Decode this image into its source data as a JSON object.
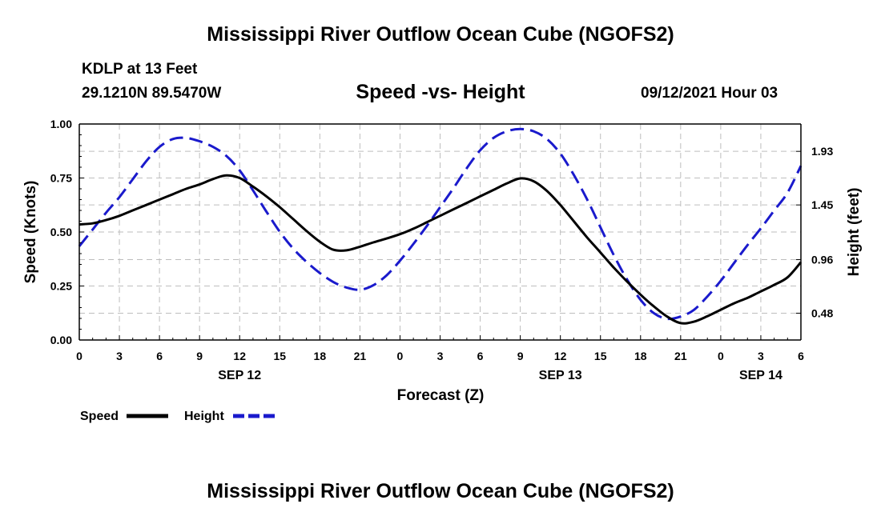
{
  "header": {
    "title": "Mississippi River Outflow Ocean Cube (NGOFS2)",
    "station": "KDLP at 13 Feet",
    "coords": "29.1210N  89.5470W",
    "subtitle": "Speed -vs- Height",
    "datetime": "09/12/2021 Hour 03"
  },
  "footer": {
    "title": "Mississippi River Outflow Ocean Cube (NGOFS2)"
  },
  "chart_data": {
    "type": "line",
    "title": "Speed -vs- Height",
    "xlabel": "Forecast (Z)",
    "ylabel": "Speed (Knots)",
    "y2label": "Height (feet)",
    "x_range_hours": [
      0,
      54
    ],
    "x_ticks": [
      {
        "h": 0,
        "label": "0"
      },
      {
        "h": 3,
        "label": "3"
      },
      {
        "h": 6,
        "label": "6"
      },
      {
        "h": 9,
        "label": "9"
      },
      {
        "h": 12,
        "label": "12"
      },
      {
        "h": 15,
        "label": "15"
      },
      {
        "h": 18,
        "label": "18"
      },
      {
        "h": 21,
        "label": "21"
      },
      {
        "h": 24,
        "label": "0"
      },
      {
        "h": 27,
        "label": "3"
      },
      {
        "h": 30,
        "label": "6"
      },
      {
        "h": 33,
        "label": "9"
      },
      {
        "h": 36,
        "label": "12"
      },
      {
        "h": 39,
        "label": "15"
      },
      {
        "h": 42,
        "label": "18"
      },
      {
        "h": 45,
        "label": "21"
      },
      {
        "h": 48,
        "label": "0"
      },
      {
        "h": 51,
        "label": "3"
      },
      {
        "h": 54,
        "label": "6"
      }
    ],
    "date_labels": [
      {
        "h": 12,
        "label": "SEP 12"
      },
      {
        "h": 36,
        "label": "SEP 13"
      },
      {
        "h": 51,
        "label": "SEP 14"
      }
    ],
    "ylim": [
      0,
      1
    ],
    "y_ticks": [
      "0.00",
      "0.25",
      "0.50",
      "0.75",
      "1.00"
    ],
    "y2lim": [
      0.24,
      2.175
    ],
    "y2_ticks": [
      "0.48",
      "0.96",
      "1.45",
      "1.93"
    ],
    "grid": true,
    "legend": [
      {
        "name": "Speed",
        "color": "#000000",
        "style": "solid"
      },
      {
        "name": "Height",
        "color": "#1a1acc",
        "style": "dashed"
      }
    ],
    "series": [
      {
        "name": "Speed",
        "axis": "left",
        "color": "#000000",
        "points": [
          [
            0,
            0.535
          ],
          [
            1,
            0.54
          ],
          [
            2,
            0.555
          ],
          [
            3,
            0.575
          ],
          [
            4,
            0.6
          ],
          [
            5,
            0.625
          ],
          [
            6,
            0.65
          ],
          [
            7,
            0.675
          ],
          [
            8,
            0.7
          ],
          [
            9,
            0.72
          ],
          [
            10,
            0.745
          ],
          [
            11,
            0.762
          ],
          [
            12,
            0.75
          ],
          [
            13,
            0.71
          ],
          [
            14,
            0.665
          ],
          [
            15,
            0.615
          ],
          [
            16,
            0.56
          ],
          [
            17,
            0.505
          ],
          [
            18,
            0.455
          ],
          [
            19,
            0.418
          ],
          [
            20,
            0.415
          ],
          [
            21,
            0.432
          ],
          [
            22,
            0.452
          ],
          [
            23,
            0.47
          ],
          [
            24,
            0.49
          ],
          [
            25,
            0.515
          ],
          [
            26,
            0.545
          ],
          [
            27,
            0.575
          ],
          [
            28,
            0.605
          ],
          [
            29,
            0.635
          ],
          [
            30,
            0.665
          ],
          [
            31,
            0.695
          ],
          [
            32,
            0.725
          ],
          [
            33,
            0.748
          ],
          [
            34,
            0.735
          ],
          [
            35,
            0.69
          ],
          [
            36,
            0.625
          ],
          [
            37,
            0.55
          ],
          [
            38,
            0.475
          ],
          [
            39,
            0.405
          ],
          [
            40,
            0.335
          ],
          [
            41,
            0.27
          ],
          [
            42,
            0.21
          ],
          [
            43,
            0.155
          ],
          [
            44,
            0.108
          ],
          [
            45,
            0.078
          ],
          [
            46,
            0.085
          ],
          [
            47,
            0.11
          ],
          [
            48,
            0.14
          ],
          [
            49,
            0.17
          ],
          [
            50,
            0.195
          ],
          [
            51,
            0.225
          ],
          [
            52,
            0.255
          ],
          [
            53,
            0.29
          ],
          [
            54,
            0.36
          ]
        ]
      },
      {
        "name": "Height",
        "axis": "right",
        "color": "#1a1acc",
        "points": [
          [
            0,
            1.08
          ],
          [
            1,
            1.23
          ],
          [
            2,
            1.38
          ],
          [
            3,
            1.52
          ],
          [
            4,
            1.68
          ],
          [
            5,
            1.84
          ],
          [
            6,
            1.97
          ],
          [
            7,
            2.04
          ],
          [
            8,
            2.05
          ],
          [
            9,
            2.02
          ],
          [
            10,
            1.97
          ],
          [
            11,
            1.89
          ],
          [
            12,
            1.76
          ],
          [
            13,
            1.58
          ],
          [
            14,
            1.39
          ],
          [
            15,
            1.21
          ],
          [
            16,
            1.06
          ],
          [
            17,
            0.94
          ],
          [
            18,
            0.84
          ],
          [
            19,
            0.76
          ],
          [
            20,
            0.71
          ],
          [
            21,
            0.69
          ],
          [
            22,
            0.73
          ],
          [
            23,
            0.82
          ],
          [
            24,
            0.95
          ],
          [
            25,
            1.1
          ],
          [
            26,
            1.26
          ],
          [
            27,
            1.43
          ],
          [
            28,
            1.6
          ],
          [
            29,
            1.78
          ],
          [
            30,
            1.94
          ],
          [
            31,
            2.05
          ],
          [
            32,
            2.11
          ],
          [
            33,
            2.13
          ],
          [
            34,
            2.11
          ],
          [
            35,
            2.04
          ],
          [
            36,
            1.91
          ],
          [
            37,
            1.72
          ],
          [
            38,
            1.5
          ],
          [
            39,
            1.25
          ],
          [
            40,
            1.0
          ],
          [
            41,
            0.78
          ],
          [
            42,
            0.6
          ],
          [
            43,
            0.48
          ],
          [
            44,
            0.43
          ],
          [
            45,
            0.45
          ],
          [
            46,
            0.51
          ],
          [
            47,
            0.63
          ],
          [
            48,
            0.77
          ],
          [
            49,
            0.93
          ],
          [
            50,
            1.09
          ],
          [
            51,
            1.24
          ],
          [
            52,
            1.4
          ],
          [
            53,
            1.56
          ],
          [
            54,
            1.8
          ]
        ]
      }
    ]
  }
}
